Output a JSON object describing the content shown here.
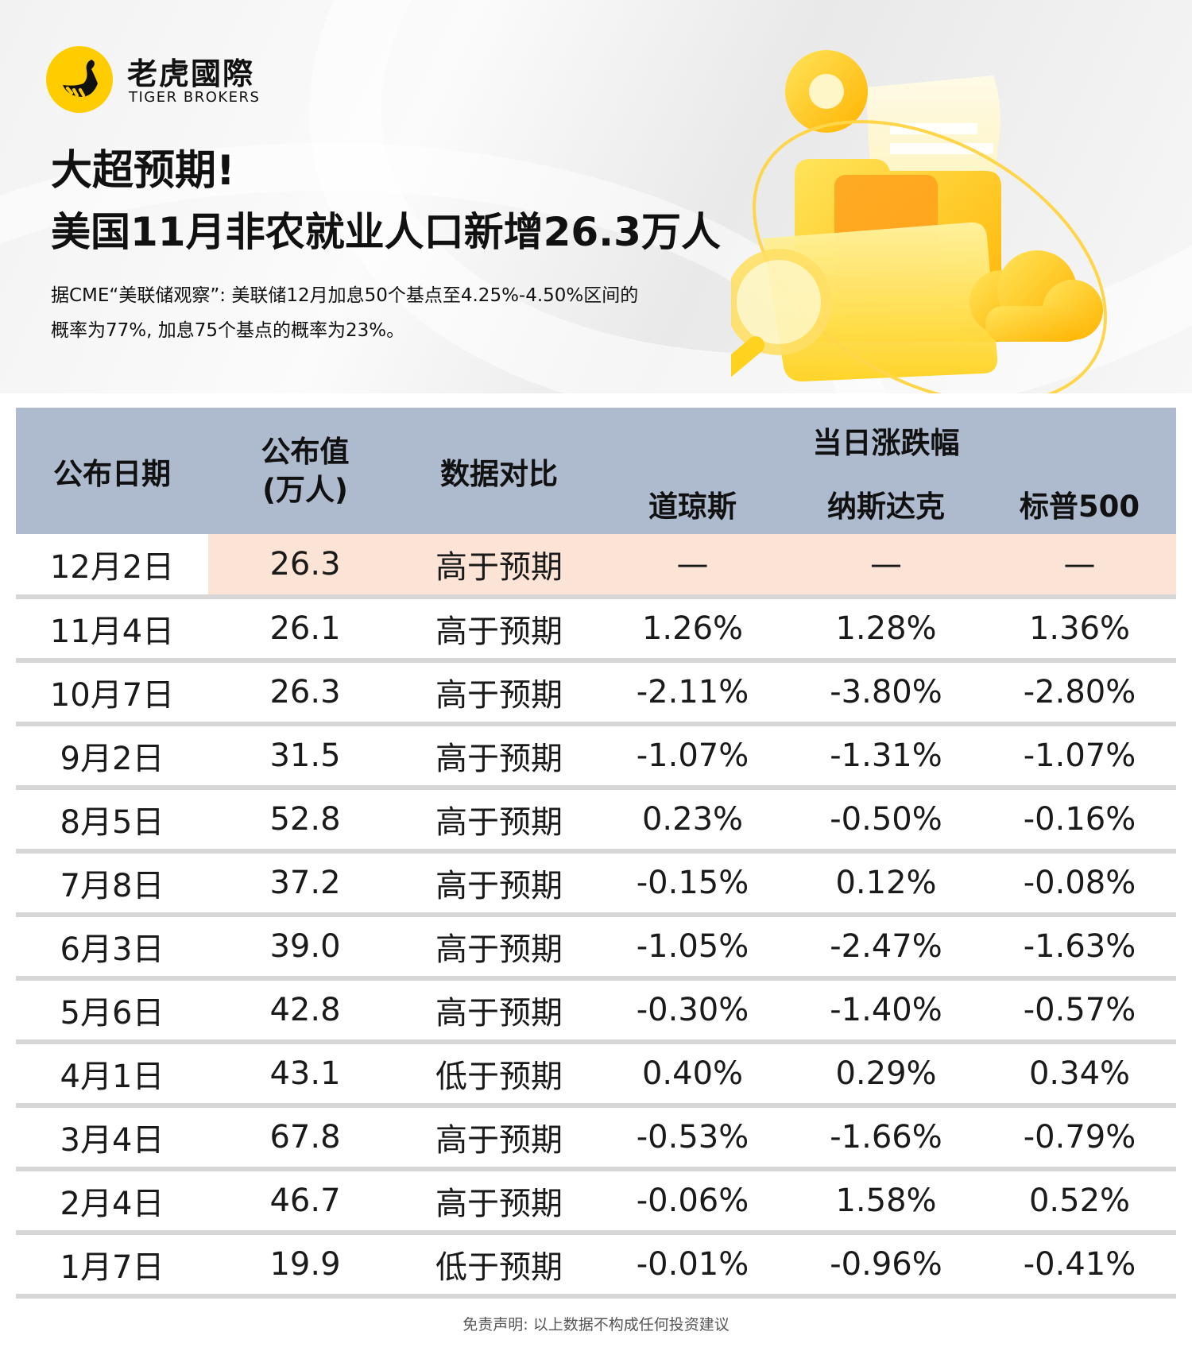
{
  "brand": {
    "name_cn": "老虎國際",
    "name_en": "TIGER BROKERS"
  },
  "headline": {
    "line1": "大超预期!",
    "line2": "美国11月非农就业人口新增26.3万人"
  },
  "subtitle": {
    "line1": "据CME“美联储观察”: 美联储12月加息50个基点至4.25%-4.50%区间的",
    "line2": "概率为77%, 加息75个基点的概率为23%。"
  },
  "table": {
    "headers": {
      "date": "公布日期",
      "value_line1": "公布值",
      "value_line2": "(万人)",
      "compare": "数据对比",
      "group": "当日涨跌幅",
      "dow": "道琼斯",
      "nasdaq": "纳斯达克",
      "sp500": "标普500"
    },
    "rows": [
      {
        "date": "12月2日",
        "value": "26.3",
        "compare": "高于预期",
        "dow": "—",
        "nasdaq": "—",
        "sp500": "—"
      },
      {
        "date": "11月4日",
        "value": "26.1",
        "compare": "高于预期",
        "dow": "1.26%",
        "nasdaq": "1.28%",
        "sp500": "1.36%"
      },
      {
        "date": "10月7日",
        "value": "26.3",
        "compare": "高于预期",
        "dow": "-2.11%",
        "nasdaq": "-3.80%",
        "sp500": "-2.80%"
      },
      {
        "date": "9月2日",
        "value": "31.5",
        "compare": "高于预期",
        "dow": "-1.07%",
        "nasdaq": "-1.31%",
        "sp500": "-1.07%"
      },
      {
        "date": "8月5日",
        "value": "52.8",
        "compare": "高于预期",
        "dow": "0.23%",
        "nasdaq": "-0.50%",
        "sp500": "-0.16%"
      },
      {
        "date": "7月8日",
        "value": "37.2",
        "compare": "高于预期",
        "dow": "-0.15%",
        "nasdaq": "0.12%",
        "sp500": "-0.08%"
      },
      {
        "date": "6月3日",
        "value": "39.0",
        "compare": "高于预期",
        "dow": "-1.05%",
        "nasdaq": "-2.47%",
        "sp500": "-1.63%"
      },
      {
        "date": "5月6日",
        "value": "42.8",
        "compare": "高于预期",
        "dow": "-0.30%",
        "nasdaq": "-1.40%",
        "sp500": "-0.57%"
      },
      {
        "date": "4月1日",
        "value": "43.1",
        "compare": "低于预期",
        "dow": "0.40%",
        "nasdaq": "0.29%",
        "sp500": "0.34%"
      },
      {
        "date": "3月4日",
        "value": "67.8",
        "compare": "高于预期",
        "dow": "-0.53%",
        "nasdaq": "-1.66%",
        "sp500": "-0.79%"
      },
      {
        "date": "2月4日",
        "value": "46.7",
        "compare": "高于预期",
        "dow": "-0.06%",
        "nasdaq": "1.58%",
        "sp500": "0.52%"
      },
      {
        "date": "1月7日",
        "value": "19.9",
        "compare": "低于预期",
        "dow": "-0.01%",
        "nasdaq": "-0.96%",
        "sp500": "-0.41%"
      }
    ]
  },
  "disclaimer": "免责声明: 以上数据不构成任何投资建议",
  "colors": {
    "header_bg": "#aebbcf",
    "highlight_row": "#fbe3d6",
    "positive": "#14a83c",
    "negative": "#e8151b",
    "brand_yellow": "#ffcc00"
  },
  "icons": [
    "tiger-logo-icon",
    "folder-illustration"
  ]
}
